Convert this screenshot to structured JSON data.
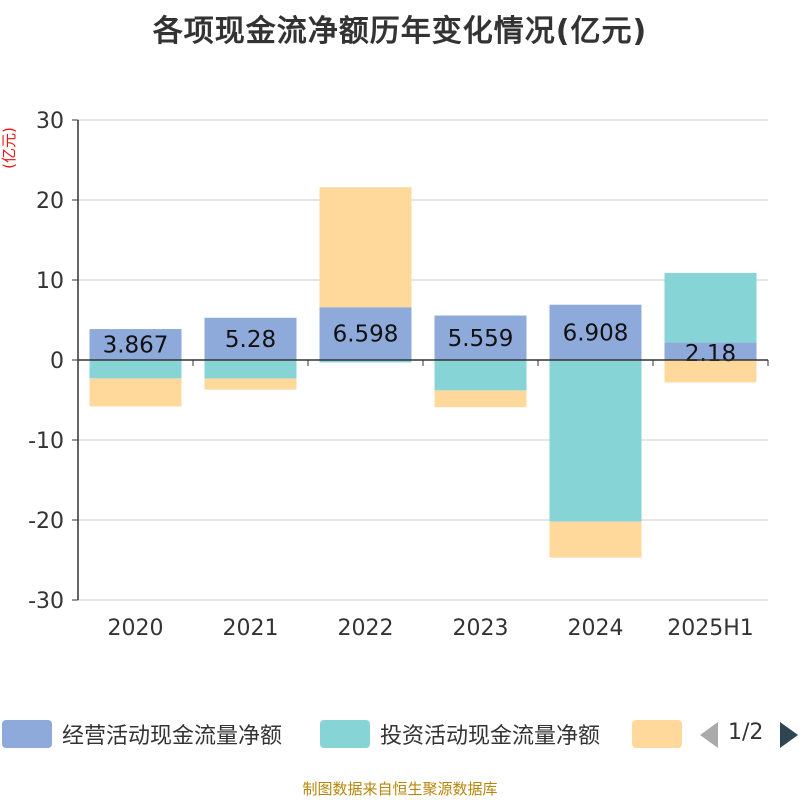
{
  "title": "各项现金流净额历年变化情况(亿元)",
  "unit_label": "(亿元)",
  "source": "制图数据来自恒生聚源数据库",
  "legend": {
    "items": [
      {
        "label": "经营活动现金流量净额",
        "color": "#8eaadb"
      },
      {
        "label": "投资活动现金流量净额",
        "color": "#86d4d6"
      },
      {
        "label": "",
        "color": "#fed99b"
      }
    ],
    "page": "1/2"
  },
  "chart_data": {
    "type": "bar",
    "stacked": true,
    "categories": [
      "2020",
      "2021",
      "2022",
      "2023",
      "2024",
      "2025H1"
    ],
    "ylim": [
      -30,
      30
    ],
    "yticks": [
      30,
      20,
      10,
      0,
      -10,
      -20,
      -30
    ],
    "grid": true,
    "legend_position": "bottom",
    "series": [
      {
        "name": "经营活动现金流量净额",
        "color": "#8eaadb",
        "values": [
          3.867,
          5.28,
          6.598,
          5.559,
          6.908,
          2.18
        ],
        "labels": [
          "3.867",
          "5.28",
          "6.598",
          "5.559",
          "6.908",
          "2.18"
        ]
      },
      {
        "name": "投资活动现金流量净额",
        "color": "#86d4d6",
        "values": [
          -2.3,
          -2.3,
          -0.3,
          -3.8,
          -20.2,
          8.7
        ]
      },
      {
        "color": "#fed99b",
        "values": [
          -3.5,
          -1.4,
          15.0,
          -2.1,
          -4.5,
          -2.8
        ]
      }
    ]
  }
}
